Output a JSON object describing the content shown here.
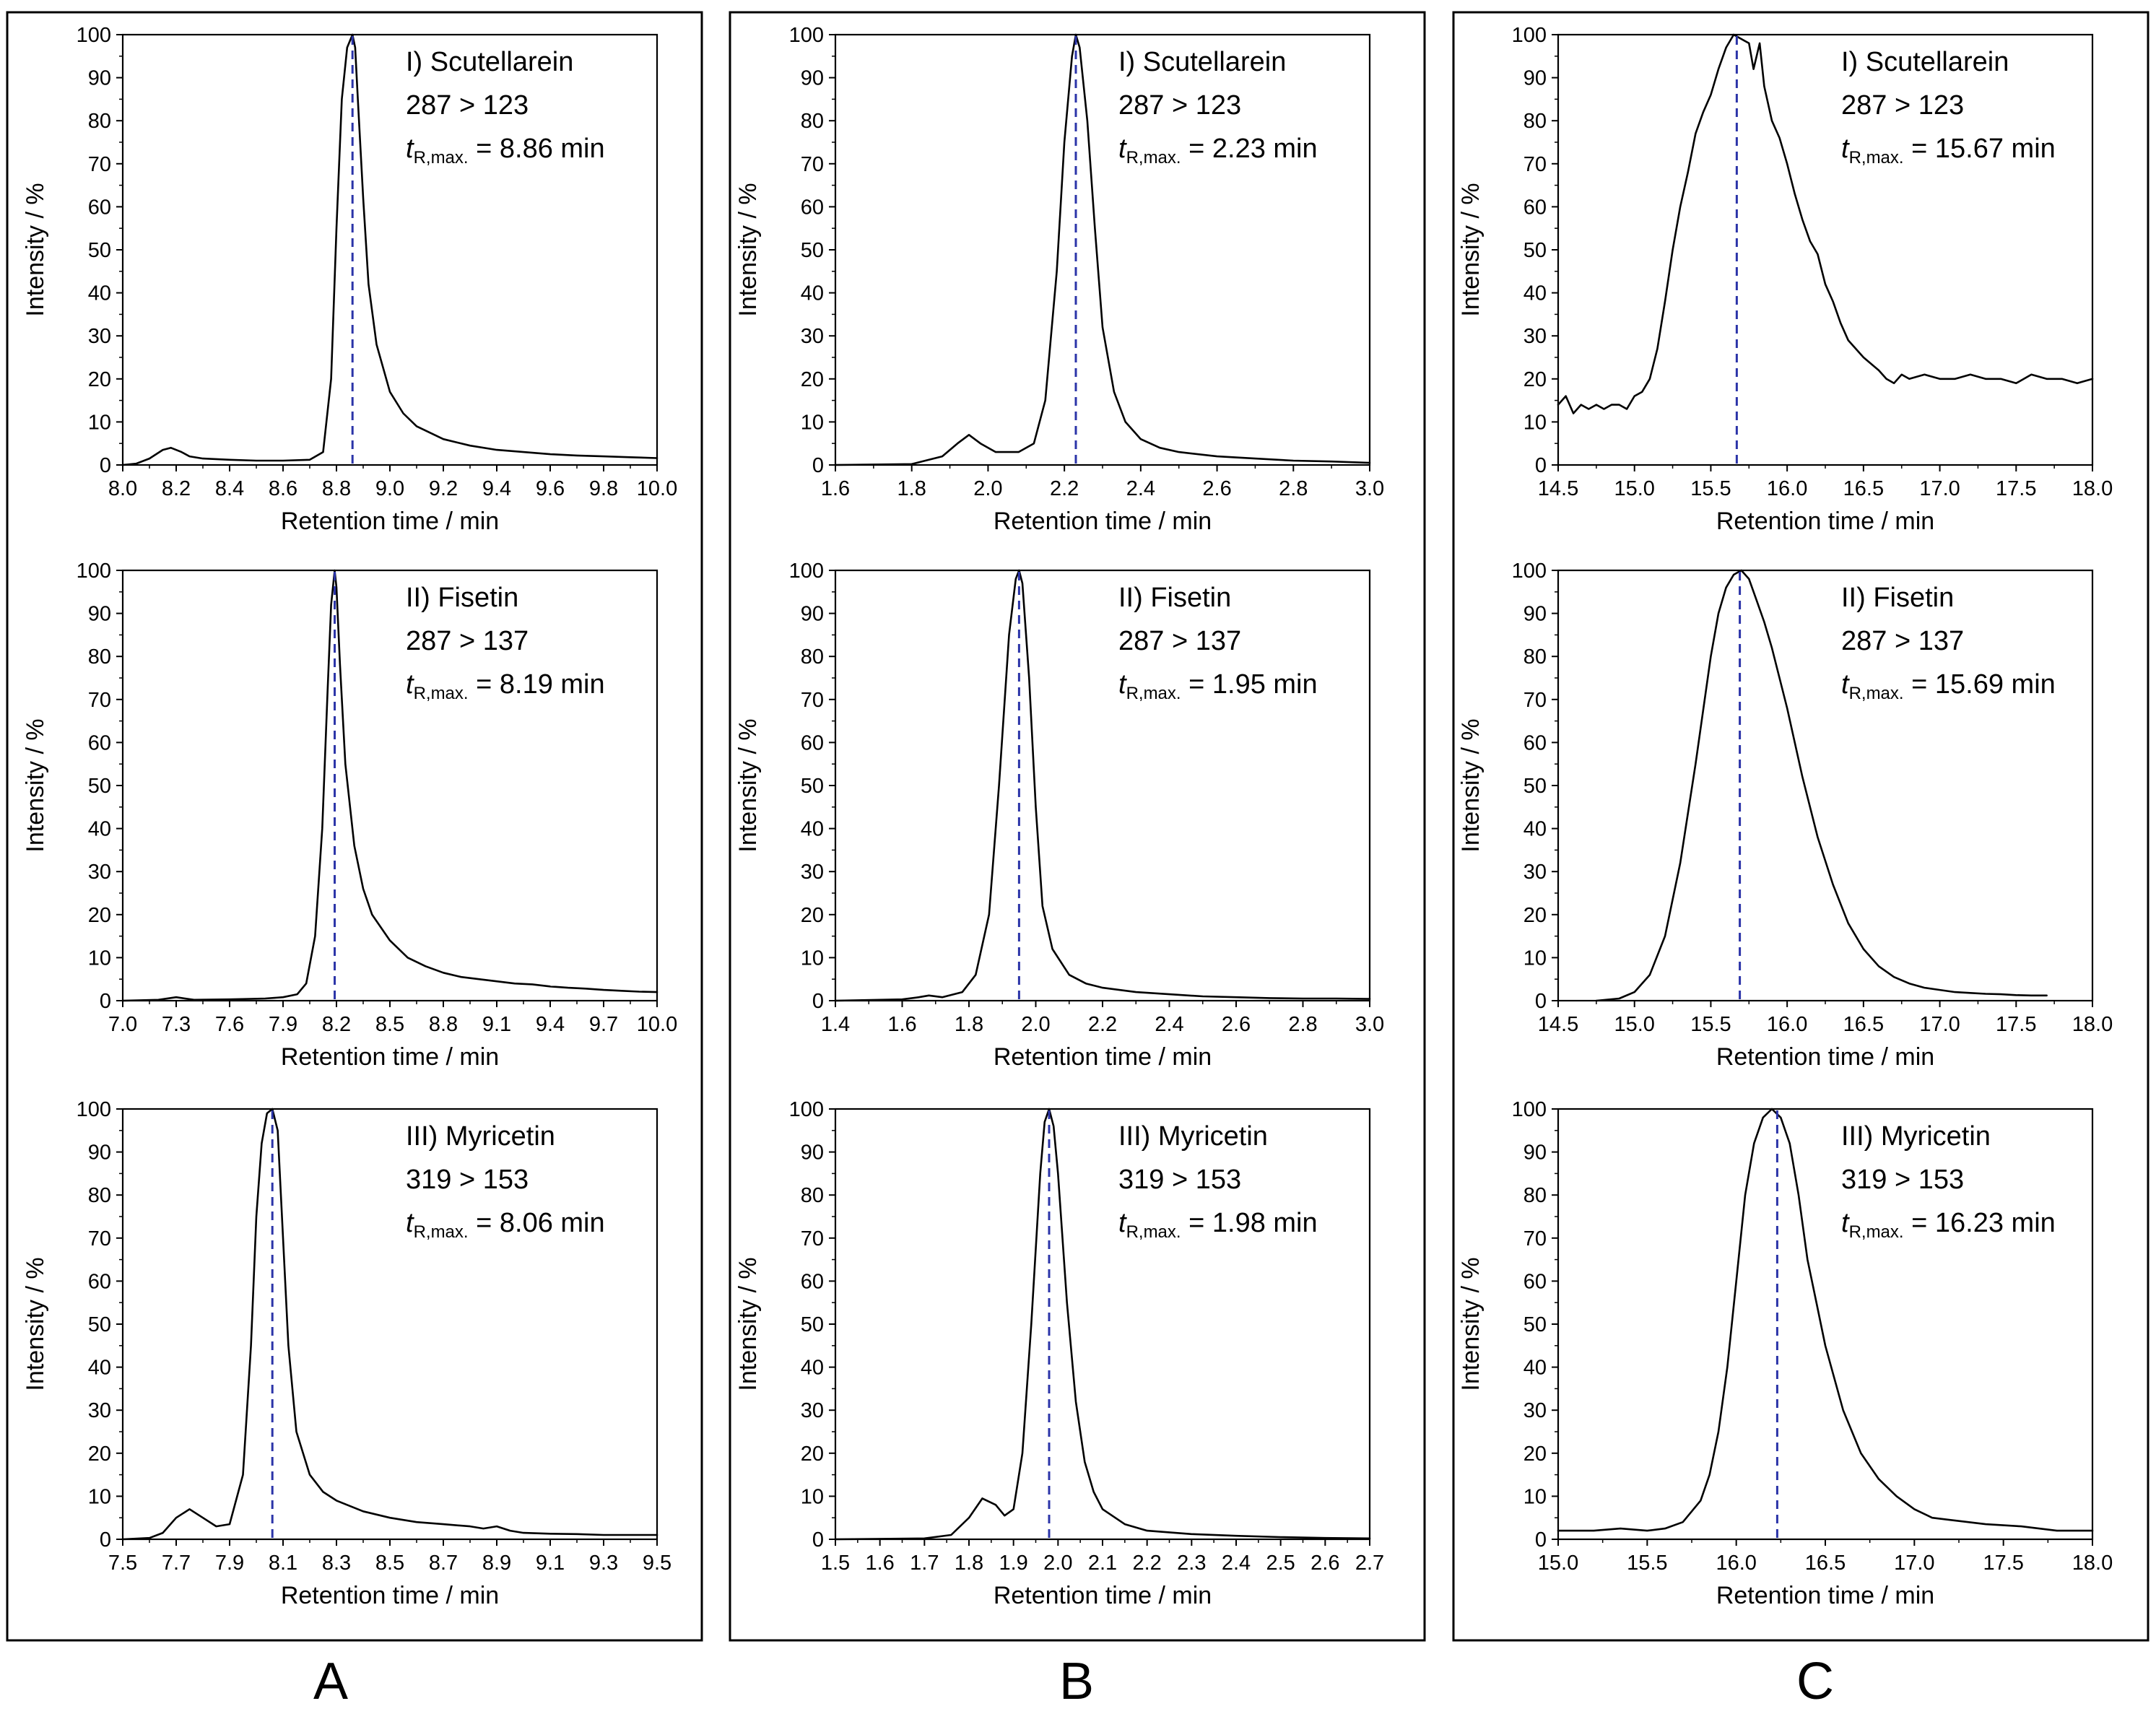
{
  "figure": {
    "columns": [
      "A",
      "B",
      "C"
    ]
  },
  "chart_data": [
    {
      "type": "line",
      "column": "A",
      "row": 0,
      "title": "I) Scutellarein",
      "transition": "287 > 123",
      "t_prefix": "t",
      "t_sub": "R,max.",
      "t_text": " = 8.86 min",
      "peak": 8.86,
      "xlabel": "Retention time / min",
      "ylabel": "Intensity / %",
      "xlim": [
        8.0,
        10.0
      ],
      "ylim": [
        0,
        100
      ],
      "xticks": [
        "8.0",
        "8.2",
        "8.4",
        "8.6",
        "8.8",
        "9.0",
        "9.2",
        "9.4",
        "9.6",
        "9.8",
        "10.0"
      ],
      "yticks": [
        "0",
        "10",
        "20",
        "30",
        "40",
        "50",
        "60",
        "70",
        "80",
        "90",
        "100"
      ],
      "x": [
        8.0,
        8.05,
        8.1,
        8.15,
        8.18,
        8.22,
        8.25,
        8.3,
        8.4,
        8.5,
        8.6,
        8.7,
        8.75,
        8.78,
        8.8,
        8.82,
        8.84,
        8.86,
        8.87,
        8.88,
        8.9,
        8.92,
        8.95,
        9.0,
        9.05,
        9.1,
        9.2,
        9.3,
        9.4,
        9.5,
        9.6,
        9.7,
        9.8,
        9.9,
        10.0
      ],
      "y": [
        0,
        0.3,
        1.5,
        3.5,
        4,
        3,
        2,
        1.5,
        1.2,
        1,
        1,
        1.2,
        3,
        20,
        55,
        85,
        97,
        100,
        97,
        85,
        62,
        42,
        28,
        17,
        12,
        9,
        6,
        4.5,
        3.5,
        3,
        2.5,
        2.2,
        2,
        1.8,
        1.6
      ]
    },
    {
      "type": "line",
      "column": "A",
      "row": 1,
      "title": "II) Fisetin",
      "transition": "287 > 137",
      "t_prefix": "t",
      "t_sub": "R,max.",
      "t_text": " = 8.19 min",
      "peak": 8.19,
      "xlabel": "Retention time / min",
      "ylabel": "Intensity / %",
      "xlim": [
        7.0,
        10.0
      ],
      "ylim": [
        0,
        100
      ],
      "xticks": [
        "7.0",
        "7.3",
        "7.6",
        "7.9",
        "8.2",
        "8.5",
        "8.8",
        "9.1",
        "9.4",
        "9.7",
        "10.0"
      ],
      "yticks": [
        "0",
        "10",
        "20",
        "30",
        "40",
        "50",
        "60",
        "70",
        "80",
        "90",
        "100"
      ],
      "x": [
        7.0,
        7.2,
        7.3,
        7.4,
        7.6,
        7.8,
        7.9,
        7.98,
        8.03,
        8.08,
        8.12,
        8.15,
        8.17,
        8.19,
        8.2,
        8.22,
        8.25,
        8.3,
        8.35,
        8.4,
        8.5,
        8.6,
        8.7,
        8.8,
        8.9,
        9.0,
        9.1,
        9.2,
        9.3,
        9.4,
        9.5,
        9.6,
        9.7,
        9.8,
        9.9,
        10.0
      ],
      "y": [
        0,
        0.2,
        0.8,
        0.2,
        0.3,
        0.5,
        0.8,
        1.5,
        4,
        15,
        40,
        72,
        92,
        100,
        96,
        78,
        55,
        36,
        26,
        20,
        14,
        10,
        8,
        6.5,
        5.5,
        5,
        4.5,
        4,
        3.8,
        3.3,
        3,
        2.8,
        2.5,
        2.3,
        2.1,
        2
      ]
    },
    {
      "type": "line",
      "column": "A",
      "row": 2,
      "title": "III) Myricetin",
      "transition": "319 > 153",
      "t_prefix": "t",
      "t_sub": "R,max.",
      "t_text": " = 8.06 min",
      "peak": 8.06,
      "xlabel": "Retention time / min",
      "ylabel": "Intensity / %",
      "xlim": [
        7.5,
        9.5
      ],
      "ylim": [
        0,
        100
      ],
      "xticks": [
        "7.5",
        "7.7",
        "7.9",
        "8.1",
        "8.3",
        "8.5",
        "8.7",
        "8.9",
        "9.1",
        "9.3",
        "9.5"
      ],
      "yticks": [
        "0",
        "10",
        "20",
        "30",
        "40",
        "50",
        "60",
        "70",
        "80",
        "90",
        "100"
      ],
      "x": [
        7.5,
        7.6,
        7.65,
        7.7,
        7.75,
        7.8,
        7.85,
        7.9,
        7.95,
        7.98,
        8.0,
        8.02,
        8.04,
        8.06,
        8.08,
        8.1,
        8.12,
        8.15,
        8.2,
        8.25,
        8.3,
        8.4,
        8.5,
        8.6,
        8.7,
        8.8,
        8.85,
        8.9,
        8.95,
        9.0,
        9.1,
        9.2,
        9.3,
        9.4,
        9.5
      ],
      "y": [
        0,
        0.3,
        1.5,
        5,
        7,
        5,
        3,
        3.5,
        15,
        45,
        75,
        92,
        99,
        100,
        95,
        70,
        45,
        25,
        15,
        11,
        9,
        6.5,
        5,
        4,
        3.5,
        3,
        2.5,
        3,
        2,
        1.5,
        1.3,
        1.2,
        1,
        1,
        1
      ]
    },
    {
      "type": "line",
      "column": "B",
      "row": 0,
      "title": "I) Scutellarein",
      "transition": "287 > 123",
      "t_prefix": "t",
      "t_sub": "R,max.",
      "t_text": " = 2.23 min",
      "peak": 2.23,
      "xlabel": "Retention time / min",
      "ylabel": "Intensity / %",
      "xlim": [
        1.6,
        3.0
      ],
      "ylim": [
        0,
        100
      ],
      "xticks": [
        "1.6",
        "1.8",
        "2.0",
        "2.2",
        "2.4",
        "2.6",
        "2.8",
        "3.0"
      ],
      "yticks": [
        "0",
        "10",
        "20",
        "30",
        "40",
        "50",
        "60",
        "70",
        "80",
        "90",
        "100"
      ],
      "x": [
        1.6,
        1.8,
        1.88,
        1.92,
        1.95,
        1.98,
        2.02,
        2.08,
        2.12,
        2.15,
        2.18,
        2.2,
        2.22,
        2.23,
        2.24,
        2.26,
        2.28,
        2.3,
        2.33,
        2.36,
        2.4,
        2.45,
        2.5,
        2.6,
        2.7,
        2.8,
        2.9,
        3.0
      ],
      "y": [
        0,
        0.2,
        2,
        5,
        7,
        5,
        3,
        3,
        5,
        15,
        45,
        75,
        95,
        100,
        97,
        80,
        55,
        32,
        17,
        10,
        6,
        4,
        3,
        2,
        1.5,
        1,
        0.8,
        0.5
      ]
    },
    {
      "type": "line",
      "column": "B",
      "row": 1,
      "title": "II) Fisetin",
      "transition": "287 > 137",
      "t_prefix": "t",
      "t_sub": "R,max.",
      "t_text": " = 1.95 min",
      "peak": 1.95,
      "xlabel": "Retention time / min",
      "ylabel": "Intensity / %",
      "xlim": [
        1.4,
        3.0
      ],
      "ylim": [
        0,
        100
      ],
      "xticks": [
        "1.4",
        "1.6",
        "1.8",
        "2.0",
        "2.2",
        "2.4",
        "2.6",
        "2.8",
        "3.0"
      ],
      "yticks": [
        "0",
        "10",
        "20",
        "30",
        "40",
        "50",
        "60",
        "70",
        "80",
        "90",
        "100"
      ],
      "x": [
        1.4,
        1.6,
        1.65,
        1.68,
        1.72,
        1.78,
        1.82,
        1.86,
        1.89,
        1.92,
        1.94,
        1.95,
        1.96,
        1.98,
        2.0,
        2.02,
        2.05,
        2.1,
        2.15,
        2.2,
        2.3,
        2.4,
        2.5,
        2.6,
        2.7,
        2.8,
        2.9,
        3.0
      ],
      "y": [
        0,
        0.3,
        0.8,
        1.2,
        0.8,
        2,
        6,
        20,
        50,
        85,
        98,
        100,
        97,
        75,
        45,
        22,
        12,
        6,
        4,
        3,
        2,
        1.5,
        1,
        0.8,
        0.6,
        0.5,
        0.5,
        0.4
      ]
    },
    {
      "type": "line",
      "column": "B",
      "row": 2,
      "title": "III) Myricetin",
      "transition": "319 > 153",
      "t_prefix": "t",
      "t_sub": "R,max.",
      "t_text": " = 1.98 min",
      "peak": 1.98,
      "xlabel": "Retention time / min",
      "ylabel": "Intensity / %",
      "xlim": [
        1.5,
        2.7
      ],
      "ylim": [
        0,
        100
      ],
      "xticks": [
        "1.5",
        "1.6",
        "1.7",
        "1.8",
        "1.9",
        "2.0",
        "2.1",
        "2.2",
        "2.3",
        "2.4",
        "2.5",
        "2.6",
        "2.7"
      ],
      "yticks": [
        "0",
        "10",
        "20",
        "30",
        "40",
        "50",
        "60",
        "70",
        "80",
        "90",
        "100"
      ],
      "x": [
        1.5,
        1.7,
        1.76,
        1.8,
        1.83,
        1.86,
        1.88,
        1.9,
        1.92,
        1.94,
        1.96,
        1.97,
        1.98,
        1.99,
        2.0,
        2.02,
        2.04,
        2.06,
        2.08,
        2.1,
        2.15,
        2.2,
        2.3,
        2.4,
        2.5,
        2.6,
        2.7
      ],
      "y": [
        0,
        0.2,
        1,
        5,
        9.5,
        8,
        5.5,
        7,
        20,
        50,
        85,
        97,
        100,
        96,
        85,
        55,
        32,
        18,
        11,
        7,
        3.5,
        2,
        1.2,
        0.8,
        0.5,
        0.3,
        0.2
      ]
    },
    {
      "type": "line",
      "column": "C",
      "row": 0,
      "title": "I) Scutellarein",
      "transition": "287 > 123",
      "t_prefix": "t",
      "t_sub": "R,max.",
      "t_text": " = 15.67 min",
      "peak": 15.67,
      "xlabel": "Retention time / min",
      "ylabel": "Intensity / %",
      "xlim": [
        14.5,
        18.0
      ],
      "ylim": [
        0,
        100
      ],
      "xticks": [
        "14.5",
        "15.0",
        "15.5",
        "16.0",
        "16.5",
        "17.0",
        "17.5",
        "18.0"
      ],
      "yticks": [
        "0",
        "10",
        "20",
        "30",
        "40",
        "50",
        "60",
        "70",
        "80",
        "90",
        "100"
      ],
      "x": [
        14.5,
        14.55,
        14.6,
        14.65,
        14.7,
        14.75,
        14.8,
        14.85,
        14.9,
        14.95,
        15.0,
        15.05,
        15.1,
        15.15,
        15.2,
        15.25,
        15.3,
        15.35,
        15.4,
        15.45,
        15.5,
        15.55,
        15.6,
        15.65,
        15.7,
        15.75,
        15.78,
        15.82,
        15.85,
        15.9,
        15.95,
        16.0,
        16.05,
        16.1,
        16.15,
        16.2,
        16.25,
        16.3,
        16.35,
        16.4,
        16.5,
        16.6,
        16.65,
        16.7,
        16.75,
        16.8,
        16.9,
        17.0,
        17.1,
        17.2,
        17.3,
        17.4,
        17.5,
        17.6,
        17.7,
        17.8,
        17.9,
        18.0
      ],
      "y": [
        14,
        16,
        12,
        14,
        13,
        14,
        13,
        14,
        14,
        13,
        16,
        17,
        20,
        27,
        38,
        50,
        60,
        68,
        77,
        82,
        86,
        92,
        97,
        100,
        99,
        98,
        92,
        98,
        88,
        80,
        76,
        70,
        63,
        57,
        52,
        49,
        42,
        38,
        33,
        29,
        25,
        22,
        20,
        19,
        21,
        20,
        21,
        20,
        20,
        21,
        20,
        20,
        19,
        21,
        20,
        20,
        19,
        20
      ]
    },
    {
      "type": "line",
      "column": "C",
      "row": 1,
      "title": "II) Fisetin",
      "transition": "287 > 137",
      "t_prefix": "t",
      "t_sub": "R,max.",
      "t_text": " = 15.69 min",
      "peak": 15.69,
      "xlabel": "Retention time / min",
      "ylabel": "Intensity / %",
      "xlim": [
        14.5,
        18.0
      ],
      "ylim": [
        0,
        100
      ],
      "xticks": [
        "14.5",
        "15.0",
        "15.5",
        "16.0",
        "16.5",
        "17.0",
        "17.5",
        "18.0"
      ],
      "yticks": [
        "0",
        "10",
        "20",
        "30",
        "40",
        "50",
        "60",
        "70",
        "80",
        "90",
        "100"
      ],
      "x": [
        14.75,
        14.9,
        15.0,
        15.1,
        15.2,
        15.3,
        15.4,
        15.5,
        15.55,
        15.6,
        15.65,
        15.7,
        15.75,
        15.8,
        15.85,
        15.9,
        16.0,
        16.1,
        16.2,
        16.3,
        16.4,
        16.5,
        16.6,
        16.7,
        16.8,
        16.9,
        17.0,
        17.1,
        17.2,
        17.3,
        17.4,
        17.5,
        17.6,
        17.7
      ],
      "y": [
        0,
        0.5,
        2,
        6,
        15,
        32,
        55,
        80,
        90,
        96,
        99,
        100,
        98,
        93,
        88,
        82,
        68,
        52,
        38,
        27,
        18,
        12,
        8,
        5.5,
        4,
        3,
        2.5,
        2,
        1.8,
        1.6,
        1.5,
        1.3,
        1.2,
        1.2
      ]
    },
    {
      "type": "line",
      "column": "C",
      "row": 2,
      "title": "III) Myricetin",
      "transition": "319 > 153",
      "t_prefix": "t",
      "t_sub": "R,max.",
      "t_text": " = 16.23 min",
      "peak": 16.23,
      "xlabel": "Retention time / min",
      "ylabel": "Intensity / %",
      "xlim": [
        15.0,
        18.0
      ],
      "ylim": [
        0,
        100
      ],
      "xticks": [
        "15.0",
        "15.5",
        "16.0",
        "16.5",
        "17.0",
        "17.5",
        "18.0"
      ],
      "yticks": [
        "0",
        "10",
        "20",
        "30",
        "40",
        "50",
        "60",
        "70",
        "80",
        "90",
        "100"
      ],
      "x": [
        15.0,
        15.2,
        15.35,
        15.5,
        15.6,
        15.7,
        15.8,
        15.85,
        15.9,
        15.95,
        16.0,
        16.05,
        16.1,
        16.15,
        16.2,
        16.25,
        16.3,
        16.35,
        16.4,
        16.45,
        16.5,
        16.6,
        16.7,
        16.8,
        16.9,
        17.0,
        17.1,
        17.2,
        17.4,
        17.6,
        17.8,
        18.0
      ],
      "y": [
        2,
        2,
        2.5,
        2,
        2.5,
        4,
        9,
        15,
        25,
        40,
        60,
        80,
        92,
        98,
        100,
        98,
        92,
        80,
        65,
        55,
        45,
        30,
        20,
        14,
        10,
        7,
        5,
        4.5,
        3.5,
        3,
        2,
        2
      ]
    }
  ]
}
